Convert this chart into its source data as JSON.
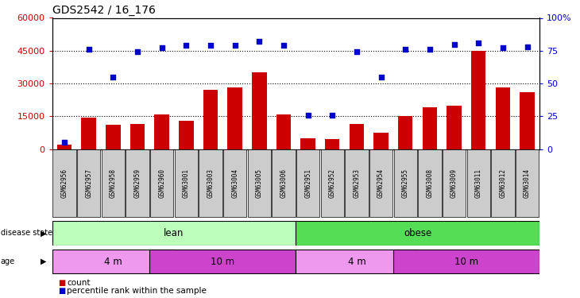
{
  "title": "GDS2542 / 16_176",
  "samples": [
    "GSM62956",
    "GSM62957",
    "GSM62958",
    "GSM62959",
    "GSM62960",
    "GSM63001",
    "GSM63003",
    "GSM63004",
    "GSM63005",
    "GSM63006",
    "GSM62951",
    "GSM62952",
    "GSM62953",
    "GSM62954",
    "GSM62955",
    "GSM63008",
    "GSM63009",
    "GSM63011",
    "GSM63012",
    "GSM63014"
  ],
  "counts": [
    2000,
    14500,
    11000,
    11500,
    16000,
    13000,
    27000,
    28000,
    35000,
    16000,
    5000,
    4500,
    11500,
    7500,
    15000,
    19000,
    20000,
    45000,
    28000,
    26000
  ],
  "percentiles": [
    5,
    76,
    55,
    74,
    77,
    79,
    79,
    79,
    82,
    79,
    26,
    26,
    74,
    55,
    76,
    76,
    80,
    81,
    77,
    78
  ],
  "bar_color": "#cc0000",
  "dot_color": "#0000cc",
  "ylim_left": [
    0,
    60000
  ],
  "ylim_right": [
    0,
    100
  ],
  "yticks_left": [
    0,
    15000,
    30000,
    45000,
    60000
  ],
  "yticks_right": [
    0,
    25,
    50,
    75,
    100
  ],
  "disease_state": {
    "lean": [
      0,
      9
    ],
    "obese": [
      10,
      19
    ]
  },
  "age_groups": [
    {
      "label": "4 m",
      "start": 0,
      "end": 4,
      "color": "#ee99ee"
    },
    {
      "label": "10 m",
      "start": 4,
      "end": 9,
      "color": "#cc44cc"
    },
    {
      "label": "4 m",
      "start": 10,
      "end": 14,
      "color": "#ee99ee"
    },
    {
      "label": "10 m",
      "start": 14,
      "end": 19,
      "color": "#cc44cc"
    }
  ],
  "lean_color": "#bbffbb",
  "obese_color": "#55dd55",
  "tick_bg_color": "#cccccc",
  "right_axis_label_color": "#0000cc",
  "left_axis_label_color": "#cc0000",
  "legend_count_color": "#cc0000",
  "legend_dot_color": "#0000cc",
  "bg_color": "#ffffff"
}
